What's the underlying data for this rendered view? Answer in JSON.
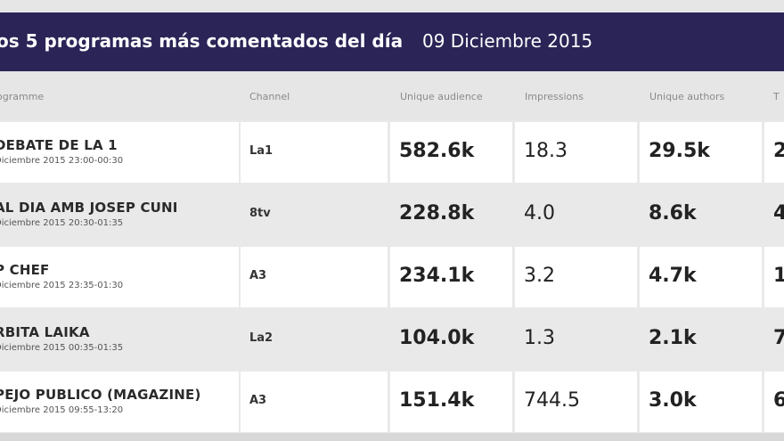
{
  "banner": {
    "title": "os 5 programas más comentados del día",
    "date": "09 Diciembre 2015"
  },
  "columns": [
    "ogramme",
    "Channel",
    "Unique audience",
    "Impressions",
    "Unique authors",
    "T"
  ],
  "rows": [
    {
      "programme": "DEBATE DE LA 1",
      "time": "Diciembre 2015 23:00-00:30",
      "channel": "La1",
      "audience": "582.6k",
      "impressions": "18.3",
      "authors": "29.5k",
      "last": "2"
    },
    {
      "programme": "AL DIA AMB JOSEP CUNI",
      "time": "Diciembre 2015 20:30-01:35",
      "channel": "8tv",
      "audience": "228.8k",
      "impressions": "4.0",
      "authors": "8.6k",
      "last": "4"
    },
    {
      "programme": "P CHEF",
      "time": "Diciembre 2015 23:35-01:30",
      "channel": "A3",
      "audience": "234.1k",
      "impressions": "3.2",
      "authors": "4.7k",
      "last": "1"
    },
    {
      "programme": "RBITA LAIKA",
      "time": "Diciembre 2015 00:35-01:35",
      "channel": "La2",
      "audience": "104.0k",
      "impressions": "1.3",
      "authors": "2.1k",
      "last": "7"
    },
    {
      "programme": "PEJO PUBLICO (MAGAZINE)",
      "time": "Diciembre 2015 09:55-13:20",
      "channel": "A3",
      "audience": "151.4k",
      "impressions": "744.5",
      "authors": "3.0k",
      "last": "6"
    }
  ]
}
